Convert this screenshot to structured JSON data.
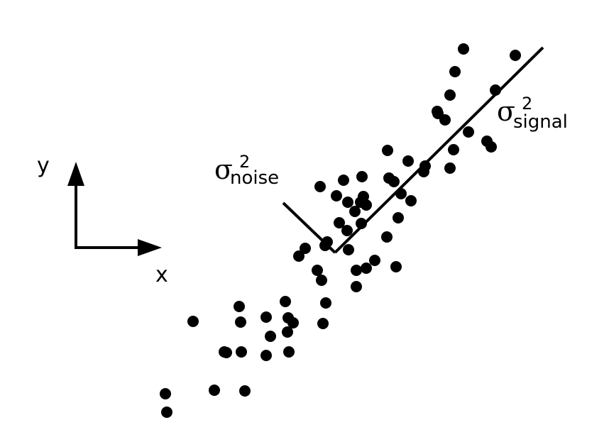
{
  "axes_glyph": {
    "x_label": "x",
    "y_label": "y"
  },
  "annotations": {
    "noise": {
      "symbol": "σ",
      "superscript": "2",
      "subscript": "noise"
    },
    "signal": {
      "symbol": "σ",
      "superscript": "2",
      "subscript": "signal"
    }
  },
  "colors": {
    "ink": "#000000",
    "background": "#ffffff"
  },
  "chart_data": {
    "type": "scatter",
    "points": [
      [
        653,
        69
      ],
      [
        726,
        78
      ],
      [
        641,
        101
      ],
      [
        698,
        127
      ],
      [
        634,
        134
      ],
      [
        616,
        157
      ],
      [
        627,
        169
      ],
      [
        617,
        160
      ],
      [
        660,
        186
      ],
      [
        686,
        199
      ],
      [
        692,
        207
      ],
      [
        639,
        211
      ],
      [
        546,
        212
      ],
      [
        575,
        227
      ],
      [
        634,
        237
      ],
      [
        599,
        234
      ],
      [
        597,
        242
      ],
      [
        510,
        249
      ],
      [
        548,
        251
      ],
      [
        555,
        256
      ],
      [
        484,
        254
      ],
      [
        451,
        263
      ],
      [
        474,
        276
      ],
      [
        565,
        273
      ],
      [
        512,
        277
      ],
      [
        508,
        285
      ],
      [
        490,
        285
      ],
      [
        516,
        289
      ],
      [
        579,
        283
      ],
      [
        561,
        307
      ],
      [
        500,
        298
      ],
      [
        478,
        314
      ],
      [
        489,
        325
      ],
      [
        509,
        315
      ],
      [
        545,
        334
      ],
      [
        430,
        350
      ],
      [
        421,
        361
      ],
      [
        461,
        341
      ],
      [
        458,
        346
      ],
      [
        491,
        352
      ],
      [
        528,
        367
      ],
      [
        516,
        378
      ],
      [
        502,
        381
      ],
      [
        558,
        376
      ],
      [
        447,
        381
      ],
      [
        453,
        395
      ],
      [
        502,
        404
      ],
      [
        402,
        425
      ],
      [
        459,
        427
      ],
      [
        337,
        432
      ],
      [
        375,
        447
      ],
      [
        406,
        448
      ],
      [
        413,
        455
      ],
      [
        272,
        453
      ],
      [
        339,
        454
      ],
      [
        455,
        456
      ],
      [
        405,
        468
      ],
      [
        381,
        474
      ],
      [
        316,
        496
      ],
      [
        319,
        497
      ],
      [
        340,
        496
      ],
      [
        407,
        496
      ],
      [
        375,
        501
      ],
      [
        302,
        550
      ],
      [
        345,
        551
      ],
      [
        233,
        555
      ],
      [
        235,
        581
      ]
    ],
    "signal_axis": [
      [
        472,
        356
      ],
      [
        765,
        67
      ]
    ],
    "noise_axis": [
      [
        399,
        286
      ],
      [
        472,
        356
      ]
    ]
  }
}
